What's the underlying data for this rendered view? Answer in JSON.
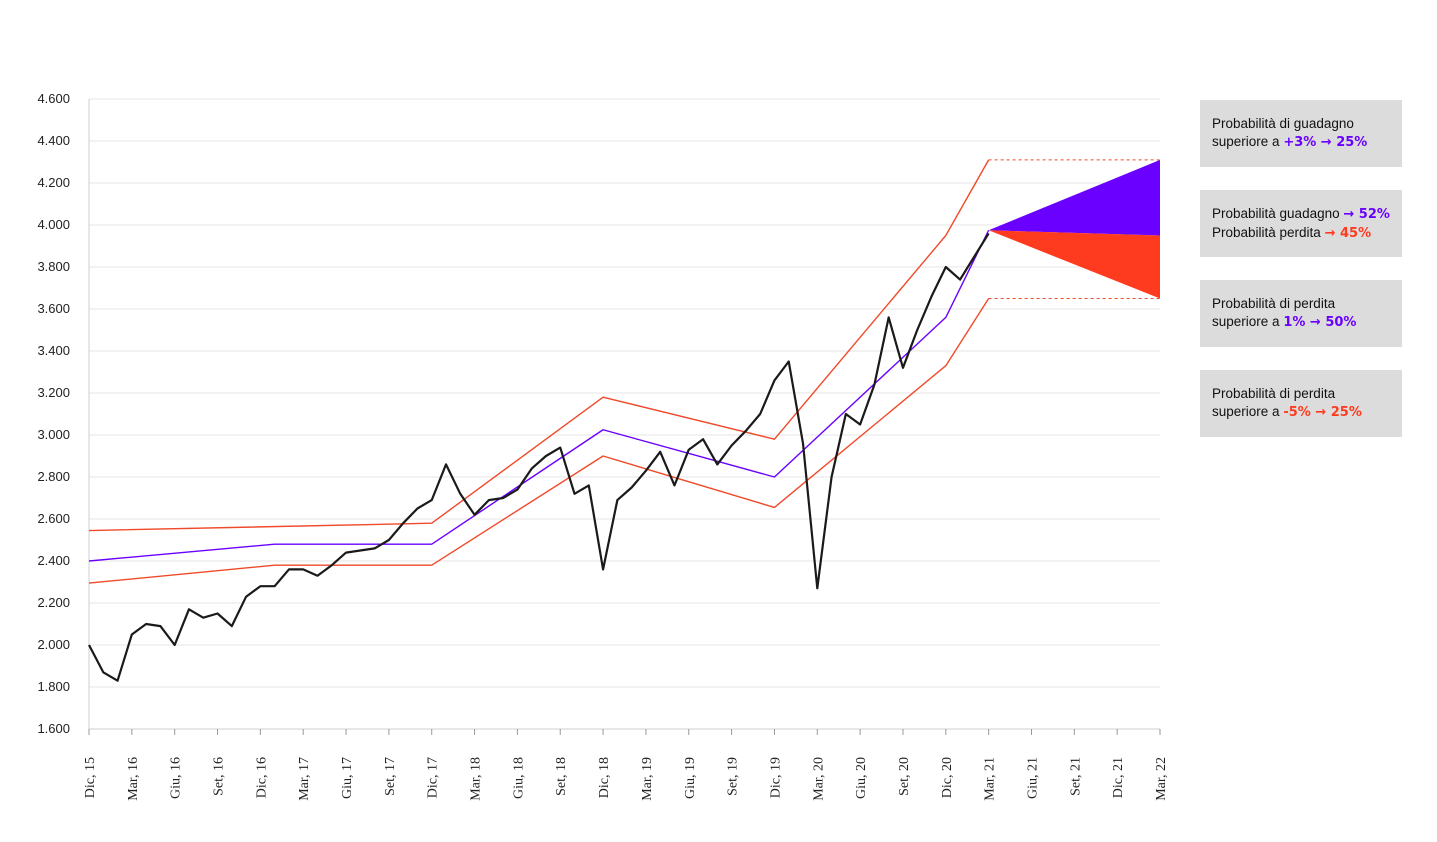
{
  "chart_data": {
    "type": "line",
    "ylim": [
      1600,
      4600
    ],
    "yticks": [
      {
        "value": 1600,
        "label": "1.600"
      },
      {
        "value": 1800,
        "label": "1.800"
      },
      {
        "value": 2000,
        "label": "2.000"
      },
      {
        "value": 2200,
        "label": "2.200"
      },
      {
        "value": 2400,
        "label": "2.400"
      },
      {
        "value": 2600,
        "label": "2.600"
      },
      {
        "value": 2800,
        "label": "2.800"
      },
      {
        "value": 3000,
        "label": "3.000"
      },
      {
        "value": 3200,
        "label": "3.200"
      },
      {
        "value": 3400,
        "label": "3.400"
      },
      {
        "value": 3600,
        "label": "3.600"
      },
      {
        "value": 3800,
        "label": "3.800"
      },
      {
        "value": 4000,
        "label": "4.000"
      },
      {
        "value": 4200,
        "label": "4.200"
      },
      {
        "value": 4400,
        "label": "4.400"
      },
      {
        "value": 4600,
        "label": "4.600"
      }
    ],
    "xlim": [
      "2015-12",
      "2022-03"
    ],
    "xticks": [
      {
        "value": "2015-12",
        "label": "Dic, 15"
      },
      {
        "value": "2016-03",
        "label": "Mar, 16"
      },
      {
        "value": "2016-06",
        "label": "Giu, 16"
      },
      {
        "value": "2016-09",
        "label": "Set, 16"
      },
      {
        "value": "2016-12",
        "label": "Dic, 16"
      },
      {
        "value": "2017-03",
        "label": "Mar, 17"
      },
      {
        "value": "2017-06",
        "label": "Giu, 17"
      },
      {
        "value": "2017-09",
        "label": "Set, 17"
      },
      {
        "value": "2017-12",
        "label": "Dic, 17"
      },
      {
        "value": "2018-03",
        "label": "Mar, 18"
      },
      {
        "value": "2018-06",
        "label": "Giu, 18"
      },
      {
        "value": "2018-09",
        "label": "Set, 18"
      },
      {
        "value": "2018-12",
        "label": "Dic, 18"
      },
      {
        "value": "2019-03",
        "label": "Mar, 19"
      },
      {
        "value": "2019-06",
        "label": "Giu, 19"
      },
      {
        "value": "2019-09",
        "label": "Set, 19"
      },
      {
        "value": "2019-12",
        "label": "Dic, 19"
      },
      {
        "value": "2020-03",
        "label": "Mar, 20"
      },
      {
        "value": "2020-06",
        "label": "Giu, 20"
      },
      {
        "value": "2020-09",
        "label": "Set, 20"
      },
      {
        "value": "2020-12",
        "label": "Dic, 20"
      },
      {
        "value": "2021-03",
        "label": "Mar, 21"
      },
      {
        "value": "2021-06",
        "label": "Giu, 21"
      },
      {
        "value": "2021-09",
        "label": "Set, 21"
      },
      {
        "value": "2021-12",
        "label": "Dic, 21"
      },
      {
        "value": "2022-03",
        "label": "Mar, 22"
      }
    ],
    "grid": true,
    "series": [
      {
        "color": "#1a1a1a",
        "width": 2.2,
        "x": [
          "2015-12",
          "2016-01",
          "2016-02",
          "2016-03",
          "2016-04",
          "2016-05",
          "2016-06",
          "2016-07",
          "2016-08",
          "2016-09",
          "2016-10",
          "2016-11",
          "2016-12",
          "2017-01",
          "2017-02",
          "2017-03",
          "2017-04",
          "2017-05",
          "2017-06",
          "2017-07",
          "2017-08",
          "2017-09",
          "2017-10",
          "2017-11",
          "2017-12",
          "2018-01",
          "2018-02",
          "2018-03",
          "2018-04",
          "2018-05",
          "2018-06",
          "2018-07",
          "2018-08",
          "2018-09",
          "2018-10",
          "2018-11",
          "2018-12",
          "2019-01",
          "2019-02",
          "2019-03",
          "2019-04",
          "2019-05",
          "2019-06",
          "2019-07",
          "2019-08",
          "2019-09",
          "2019-10",
          "2019-11",
          "2019-12",
          "2020-01",
          "2020-02",
          "2020-03",
          "2020-04",
          "2020-05",
          "2020-06",
          "2020-07",
          "2020-08",
          "2020-09",
          "2020-10",
          "2020-11",
          "2020-12",
          "2021-01",
          "2021-02",
          "2021-03"
        ],
        "values": [
          2000,
          1870,
          1830,
          2050,
          2100,
          2090,
          2000,
          2170,
          2130,
          2150,
          2090,
          2230,
          2280,
          2280,
          2360,
          2360,
          2330,
          2380,
          2440,
          2450,
          2460,
          2500,
          2580,
          2650,
          2690,
          2860,
          2720,
          2620,
          2690,
          2700,
          2740,
          2840,
          2900,
          2940,
          2720,
          2760,
          2360,
          2690,
          2750,
          2830,
          2920,
          2760,
          2930,
          2980,
          2860,
          2950,
          3020,
          3100,
          3260,
          3350,
          2960,
          2270,
          2800,
          3100,
          3050,
          3240,
          3560,
          3320,
          3500,
          3660,
          3800,
          3740,
          3850,
          3960
        ]
      },
      {
        "color": "#6a00ff",
        "width": 1.4,
        "x": [
          "2015-12",
          "2017-01",
          "2017-12",
          "2018-12",
          "2019-12",
          "2020-12",
          "2021-03"
        ],
        "values": [
          2400,
          2480,
          2480,
          3025,
          2800,
          3560,
          3975
        ]
      },
      {
        "color": "#f04a2a",
        "width": 1.4,
        "x": [
          "2015-12",
          "2017-12",
          "2018-12",
          "2019-12",
          "2020-12",
          "2021-03"
        ],
        "values": [
          2545,
          2580,
          3180,
          2980,
          3950,
          4310
        ]
      },
      {
        "color": "#f04a2a",
        "width": 1.4,
        "x": [
          "2015-12",
          "2017-01",
          "2017-12",
          "2018-12",
          "2019-12",
          "2020-12",
          "2021-03"
        ],
        "values": [
          2295,
          2380,
          2380,
          2900,
          2655,
          3330,
          3650
        ]
      },
      {
        "color": "#f04a2a",
        "width": 1,
        "dash": true,
        "x": [
          "2021-03",
          "2022-03"
        ],
        "values": [
          4310,
          4310
        ]
      },
      {
        "color": "#f04a2a",
        "width": 1,
        "dash": true,
        "x": [
          "2021-03",
          "2022-03"
        ],
        "values": [
          3650,
          3650
        ]
      }
    ],
    "cones": [
      {
        "color": "#6a00ff",
        "x": [
          "2021-03",
          "2022-03",
          "2022-03"
        ],
        "values": [
          3975,
          4310,
          3950
        ]
      },
      {
        "color": "#ff3b1f",
        "x": [
          "2021-03",
          "2022-03",
          "2022-03"
        ],
        "values": [
          3975,
          3950,
          3650
        ]
      }
    ]
  },
  "boxes": [
    {
      "lines": [
        {
          "text": "Probabilità di guadagno"
        },
        {
          "text": "superiore a",
          "highlight": "+3% → 25%",
          "color": "#6a00ff"
        }
      ]
    },
    {
      "lines": [
        {
          "text": "Probabilità guadagno",
          "highlight": "→ 52%",
          "color": "#6a00ff"
        },
        {
          "text": "Probabilità perdita",
          "highlight": "→ 45%",
          "color": "#ff3b1f"
        }
      ]
    },
    {
      "lines": [
        {
          "text": "Probabilità di perdita"
        },
        {
          "text": "superiore a",
          "highlight": "1% → 50%",
          "color": "#6a00ff"
        }
      ]
    },
    {
      "lines": [
        {
          "text": "Probabilità di perdita"
        },
        {
          "text": "superiore a",
          "highlight": "-5% → 25%",
          "color": "#ff3b1f"
        }
      ]
    }
  ]
}
